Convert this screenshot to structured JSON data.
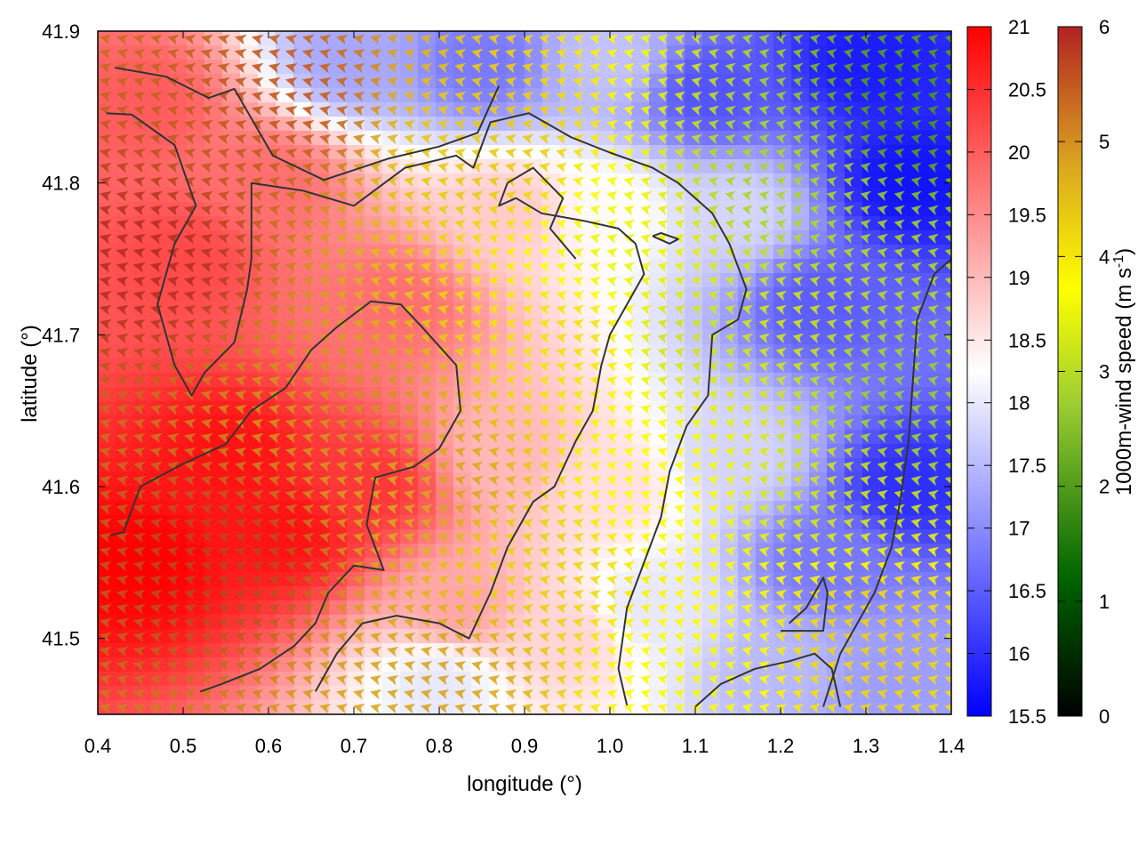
{
  "chart_data": {
    "type": "heatmap",
    "title": "",
    "xlabel": "longitude (°)",
    "ylabel": "latitude (°)",
    "xlim": [
      0.4,
      1.4
    ],
    "ylim": [
      41.45,
      41.9
    ],
    "x_ticks": [
      {
        "value": 0.4,
        "label": "0.4"
      },
      {
        "value": 0.5,
        "label": "0.5"
      },
      {
        "value": 0.6,
        "label": "0.6"
      },
      {
        "value": 0.7,
        "label": "0.7"
      },
      {
        "value": 0.8,
        "label": "0.8"
      },
      {
        "value": 0.9,
        "label": "0.9"
      },
      {
        "value": 1.0,
        "label": "1.0"
      },
      {
        "value": 1.1,
        "label": "1.1"
      },
      {
        "value": 1.2,
        "label": "1.2"
      },
      {
        "value": 1.3,
        "label": "1.3"
      },
      {
        "value": 1.4,
        "label": "1.4"
      }
    ],
    "y_ticks": [
      {
        "value": 41.5,
        "label": "41.5"
      },
      {
        "value": 41.6,
        "label": "41.6"
      },
      {
        "value": 41.7,
        "label": "41.7"
      },
      {
        "value": 41.8,
        "label": "41.8"
      },
      {
        "value": 41.9,
        "label": "41.9"
      }
    ],
    "grid": false,
    "temperature_field": {
      "colorbar_label": "",
      "range": [
        15.5,
        21
      ],
      "colormap": [
        "#0000ff",
        "#ffffff",
        "#ff0000"
      ],
      "midpoint": 18.25,
      "ticks": [
        {
          "value": 15.5,
          "label": "15.5"
        },
        {
          "value": 16,
          "label": "16"
        },
        {
          "value": 16.5,
          "label": "16.5"
        },
        {
          "value": 17,
          "label": "17"
        },
        {
          "value": 17.5,
          "label": "17.5"
        },
        {
          "value": 18,
          "label": "18"
        },
        {
          "value": 18.5,
          "label": "18.5"
        },
        {
          "value": 19,
          "label": "19"
        },
        {
          "value": 19.5,
          "label": "19.5"
        },
        {
          "value": 20,
          "label": "20"
        },
        {
          "value": 20.5,
          "label": "20.5"
        },
        {
          "value": 21,
          "label": "21"
        }
      ],
      "anchors": [
        {
          "lon": 0.45,
          "lat": 41.55,
          "value": 21.0
        },
        {
          "lon": 0.55,
          "lat": 41.62,
          "value": 20.8
        },
        {
          "lon": 0.62,
          "lat": 41.57,
          "value": 20.8
        },
        {
          "lon": 0.72,
          "lat": 41.6,
          "value": 20.4
        },
        {
          "lon": 0.5,
          "lat": 41.75,
          "value": 20.2
        },
        {
          "lon": 0.45,
          "lat": 41.85,
          "value": 20.0
        },
        {
          "lon": 0.6,
          "lat": 41.8,
          "value": 19.8
        },
        {
          "lon": 0.75,
          "lat": 41.72,
          "value": 19.8
        },
        {
          "lon": 0.82,
          "lat": 41.52,
          "value": 19.2
        },
        {
          "lon": 0.88,
          "lat": 41.62,
          "value": 19.0
        },
        {
          "lon": 0.88,
          "lat": 41.78,
          "value": 18.8
        },
        {
          "lon": 0.95,
          "lat": 41.5,
          "value": 18.7
        },
        {
          "lon": 0.8,
          "lat": 41.47,
          "value": 18.0
        },
        {
          "lon": 1.0,
          "lat": 41.6,
          "value": 18.6
        },
        {
          "lon": 1.0,
          "lat": 41.78,
          "value": 18.3
        },
        {
          "lon": 1.05,
          "lat": 41.52,
          "value": 18.0
        },
        {
          "lon": 1.0,
          "lat": 41.88,
          "value": 17.6
        },
        {
          "lon": 1.15,
          "lat": 41.62,
          "value": 17.8
        },
        {
          "lon": 1.15,
          "lat": 41.78,
          "value": 17.8
        },
        {
          "lon": 0.7,
          "lat": 41.88,
          "value": 17.3
        },
        {
          "lon": 0.85,
          "lat": 41.88,
          "value": 16.8
        },
        {
          "lon": 1.12,
          "lat": 41.86,
          "value": 16.4
        },
        {
          "lon": 1.25,
          "lat": 41.55,
          "value": 16.8
        },
        {
          "lon": 1.25,
          "lat": 41.72,
          "value": 16.5
        },
        {
          "lon": 1.35,
          "lat": 41.6,
          "value": 16.0
        },
        {
          "lon": 1.35,
          "lat": 41.8,
          "value": 15.7
        },
        {
          "lon": 1.3,
          "lat": 41.88,
          "value": 15.8
        },
        {
          "lon": 1.2,
          "lat": 41.48,
          "value": 17.5
        },
        {
          "lon": 1.32,
          "lat": 41.47,
          "value": 17.2
        }
      ]
    },
    "wind_field": {
      "colorbar_label": "1000m-wind speed (m s-1)",
      "range": [
        0,
        6
      ],
      "colormap": [
        "#000000",
        "#006400",
        "#9acd32",
        "#ffff00",
        "#daa520",
        "#b22222"
      ],
      "ticks": [
        {
          "value": 0,
          "label": "0"
        },
        {
          "value": 1,
          "label": "1"
        },
        {
          "value": 2,
          "label": "2"
        },
        {
          "value": 3,
          "label": "3"
        },
        {
          "value": 4,
          "label": "4"
        },
        {
          "value": 5,
          "label": "5"
        },
        {
          "value": 6,
          "label": "6"
        }
      ],
      "direction_deg_math": 165,
      "speed_anchors": [
        {
          "lon": 0.45,
          "lat": 41.75,
          "value": 5.9
        },
        {
          "lon": 0.55,
          "lat": 41.55,
          "value": 5.7
        },
        {
          "lon": 0.6,
          "lat": 41.85,
          "value": 5.5
        },
        {
          "lon": 0.7,
          "lat": 41.65,
          "value": 5.0
        },
        {
          "lon": 0.8,
          "lat": 41.6,
          "value": 4.8
        },
        {
          "lon": 0.85,
          "lat": 41.82,
          "value": 4.3
        },
        {
          "lon": 0.9,
          "lat": 41.55,
          "value": 4.2
        },
        {
          "lon": 0.95,
          "lat": 41.7,
          "value": 4.0
        },
        {
          "lon": 1.0,
          "lat": 41.75,
          "value": 3.4
        },
        {
          "lon": 1.05,
          "lat": 41.6,
          "value": 3.6
        },
        {
          "lon": 1.1,
          "lat": 41.7,
          "value": 3.0
        },
        {
          "lon": 1.2,
          "lat": 41.8,
          "value": 2.6
        },
        {
          "lon": 1.25,
          "lat": 41.6,
          "value": 3.0
        },
        {
          "lon": 1.35,
          "lat": 41.85,
          "value": 1.8
        },
        {
          "lon": 1.35,
          "lat": 41.65,
          "value": 2.4
        },
        {
          "lon": 1.3,
          "lat": 41.5,
          "value": 4.2
        },
        {
          "lon": 1.1,
          "lat": 41.48,
          "value": 3.5
        },
        {
          "lon": 0.8,
          "lat": 41.48,
          "value": 4.8
        }
      ]
    },
    "contours": [
      [
        [
          0.42,
          41.876
        ],
        [
          0.48,
          41.87
        ],
        [
          0.53,
          41.856
        ],
        [
          0.56,
          41.862
        ],
        [
          0.605,
          41.818
        ],
        [
          0.665,
          41.802
        ],
        [
          0.74,
          41.816
        ],
        [
          0.8,
          41.824
        ],
        [
          0.845,
          41.833
        ],
        [
          0.87,
          41.864
        ]
      ],
      [
        [
          0.41,
          41.846
        ],
        [
          0.44,
          41.845
        ],
        [
          0.49,
          41.825
        ],
        [
          0.515,
          41.785
        ],
        [
          0.49,
          41.76
        ],
        [
          0.47,
          41.72
        ],
        [
          0.49,
          41.68
        ],
        [
          0.51,
          41.66
        ],
        [
          0.525,
          41.675
        ],
        [
          0.56,
          41.695
        ],
        [
          0.575,
          41.73
        ],
        [
          0.58,
          41.75
        ],
        [
          0.58,
          41.8
        ],
        [
          0.64,
          41.795
        ],
        [
          0.7,
          41.785
        ],
        [
          0.76,
          41.81
        ],
        [
          0.82,
          41.818
        ],
        [
          0.84,
          41.81
        ],
        [
          0.86,
          41.84
        ],
        [
          0.905,
          41.846
        ],
        [
          0.955,
          41.83
        ],
        [
          1.0,
          41.82
        ],
        [
          1.05,
          41.81
        ],
        [
          1.08,
          41.8
        ],
        [
          1.12,
          41.78
        ],
        [
          1.14,
          41.76
        ],
        [
          1.16,
          41.73
        ],
        [
          1.15,
          41.71
        ],
        [
          1.12,
          41.7
        ],
        [
          1.115,
          41.66
        ],
        [
          1.09,
          41.64
        ],
        [
          1.07,
          41.61
        ],
        [
          1.06,
          41.58
        ],
        [
          1.04,
          41.55
        ],
        [
          1.02,
          41.52
        ],
        [
          1.01,
          41.48
        ],
        [
          1.02,
          41.456
        ]
      ],
      [
        [
          0.415,
          41.568
        ],
        [
          0.43,
          41.57
        ],
        [
          0.45,
          41.6
        ],
        [
          0.5,
          41.615
        ],
        [
          0.55,
          41.628
        ],
        [
          0.58,
          41.65
        ],
        [
          0.62,
          41.665
        ],
        [
          0.65,
          41.69
        ],
        [
          0.68,
          41.705
        ],
        [
          0.72,
          41.722
        ],
        [
          0.755,
          41.72
        ],
        [
          0.78,
          41.705
        ],
        [
          0.82,
          41.68
        ],
        [
          0.825,
          41.65
        ],
        [
          0.8,
          41.625
        ],
        [
          0.77,
          41.613
        ],
        [
          0.725,
          41.606
        ],
        [
          0.715,
          41.575
        ],
        [
          0.735,
          41.545
        ],
        [
          0.7,
          41.548
        ],
        [
          0.67,
          41.53
        ],
        [
          0.655,
          41.51
        ],
        [
          0.63,
          41.495
        ],
        [
          0.59,
          41.48
        ],
        [
          0.545,
          41.47
        ],
        [
          0.52,
          41.465
        ]
      ],
      [
        [
          0.655,
          41.465
        ],
        [
          0.68,
          41.49
        ],
        [
          0.71,
          41.51
        ],
        [
          0.75,
          41.515
        ],
        [
          0.8,
          41.51
        ],
        [
          0.835,
          41.5
        ],
        [
          0.86,
          41.53
        ],
        [
          0.88,
          41.56
        ],
        [
          0.91,
          41.59
        ],
        [
          0.935,
          41.6
        ],
        [
          0.96,
          41.63
        ],
        [
          0.98,
          41.65
        ],
        [
          0.99,
          41.68
        ],
        [
          1.0,
          41.7
        ],
        [
          1.02,
          41.72
        ],
        [
          1.04,
          41.74
        ],
        [
          1.03,
          41.76
        ],
        [
          1.01,
          41.77
        ],
        [
          0.97,
          41.775
        ],
        [
          0.92,
          41.78
        ],
        [
          0.89,
          41.79
        ],
        [
          0.87,
          41.785
        ],
        [
          0.88,
          41.8
        ],
        [
          0.91,
          41.81
        ],
        [
          0.945,
          41.79
        ],
        [
          0.93,
          41.77
        ],
        [
          0.96,
          41.75
        ]
      ],
      [
        [
          1.25,
          41.455
        ],
        [
          1.27,
          41.49
        ],
        [
          1.29,
          41.51
        ],
        [
          1.31,
          41.53
        ],
        [
          1.33,
          41.56
        ],
        [
          1.34,
          41.59
        ],
        [
          1.35,
          41.63
        ],
        [
          1.355,
          41.67
        ],
        [
          1.36,
          41.71
        ],
        [
          1.38,
          41.74
        ],
        [
          1.4,
          41.75
        ]
      ],
      [
        [
          1.1,
          41.455
        ],
        [
          1.13,
          41.47
        ],
        [
          1.17,
          41.48
        ],
        [
          1.21,
          41.485
        ],
        [
          1.24,
          41.49
        ],
        [
          1.26,
          41.48
        ],
        [
          1.27,
          41.455
        ]
      ],
      [
        [
          1.2,
          41.505
        ],
        [
          1.25,
          41.505
        ],
        [
          1.255,
          41.53
        ],
        [
          1.25,
          41.54
        ],
        [
          1.23,
          41.52
        ],
        [
          1.21,
          41.51
        ]
      ],
      [
        [
          1.05,
          41.765
        ],
        [
          1.07,
          41.76
        ],
        [
          1.08,
          41.763
        ],
        [
          1.06,
          41.767
        ],
        [
          1.05,
          41.765
        ]
      ]
    ]
  }
}
